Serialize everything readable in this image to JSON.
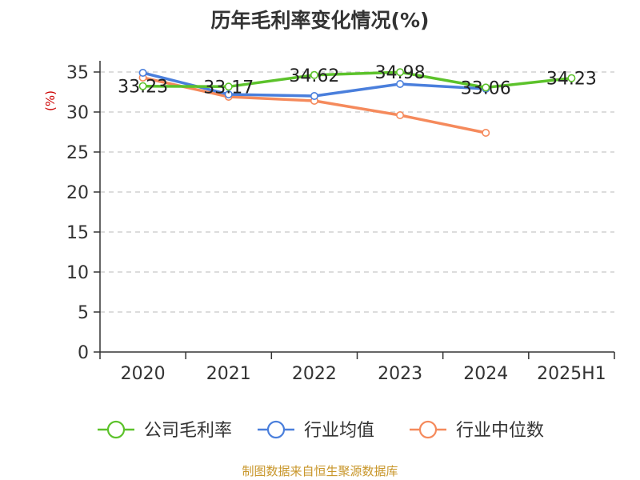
{
  "chart_data": {
    "type": "line",
    "title": "历年毛利率变化情况(%)",
    "ylabel": "(%)",
    "ylim": [
      0,
      35
    ],
    "yticks": [
      0,
      5,
      10,
      15,
      20,
      25,
      30,
      35
    ],
    "categories": [
      "2020",
      "2021",
      "2022",
      "2023",
      "2024",
      "2025H1"
    ],
    "grid": true,
    "legend_position": "bottom",
    "series": [
      {
        "name": "公司毛利率",
        "color": "#5cc22b",
        "values": [
          33.23,
          33.17,
          34.62,
          34.98,
          33.06,
          34.23
        ],
        "labels": [
          "33.23",
          "33.17",
          "34.62",
          "34.98",
          "33.06",
          "34.23"
        ]
      },
      {
        "name": "行业均值",
        "color": "#4a7fdc",
        "values": [
          34.9,
          32.2,
          32.0,
          33.5,
          32.9,
          null
        ]
      },
      {
        "name": "行业中位数",
        "color": "#f58a5c",
        "values": [
          34.3,
          31.9,
          31.4,
          29.6,
          27.4,
          null
        ]
      }
    ]
  },
  "footer": "制图数据来自恒生聚源数据库"
}
